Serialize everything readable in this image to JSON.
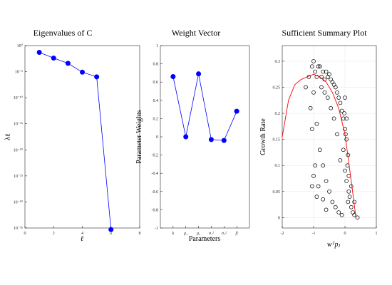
{
  "chart_data": [
    {
      "type": "line",
      "title": "Eigenvalues of C",
      "xlabel": "ℓ",
      "ylabel": "λℓ",
      "yscale": "log",
      "xlim": [
        0,
        8
      ],
      "ylim_exponent": [
        -35,
        0
      ],
      "x_tick_labels": [
        "0",
        "2",
        "4",
        "6",
        "8"
      ],
      "y_tick_labels": [
        "10⁰",
        "10⁻⁵",
        "10⁻¹⁰",
        "10⁻¹⁵",
        "10⁻²⁰",
        "10⁻²⁵",
        "10⁻³⁰",
        "10⁻³⁵"
      ],
      "x": [
        1,
        2,
        3,
        4,
        5,
        6
      ],
      "y_log10": [
        -1.3,
        -2.4,
        -3.4,
        -5.1,
        -6.0,
        -35.3
      ],
      "color": "#0000ff"
    },
    {
      "type": "line",
      "title": "Weight Vector",
      "xlabel": "Parameters",
      "ylabel": "Parameter Weights",
      "ylim": [
        -1,
        1
      ],
      "categories": [
        "k",
        "μ₁",
        "μ₂",
        "σ₁²",
        "σ₂²",
        "β"
      ],
      "y_tick_labels": [
        "1",
        "0.8",
        "0.6",
        "0.4",
        "0.2",
        "0",
        "-0.2",
        "-0.4",
        "-0.6",
        "-0.8",
        "-1"
      ],
      "values": [
        0.66,
        0.0,
        0.69,
        -0.03,
        -0.04,
        0.28
      ],
      "color": "#0000ff"
    },
    {
      "type": "scatter",
      "title": "Sufficient Summary Plot",
      "xlabel": "wᵀpⱼ",
      "ylabel": "Growth Rate",
      "xlim": [
        -2,
        1
      ],
      "ylim": [
        -0.02,
        0.33
      ],
      "grid": true,
      "x_tick_labels": [
        "-2",
        "-1",
        "0",
        "1"
      ],
      "y_tick_labels": [
        "0.3",
        "0.25",
        "0.2",
        "0.15",
        "0.1",
        "0.05",
        "0"
      ],
      "points": [
        [
          -1.25,
          0.25
        ],
        [
          -1.05,
          0.29
        ],
        [
          -1.0,
          0.3
        ],
        [
          -0.95,
          0.28
        ],
        [
          -0.9,
          0.27
        ],
        [
          -0.85,
          0.29
        ],
        [
          -0.8,
          0.29
        ],
        [
          -0.75,
          0.27
        ],
        [
          -0.7,
          0.28
        ],
        [
          -0.65,
          0.265
        ],
        [
          -0.6,
          0.28
        ],
        [
          -0.55,
          0.27
        ],
        [
          -0.5,
          0.275
        ],
        [
          -0.45,
          0.265
        ],
        [
          -0.4,
          0.26
        ],
        [
          -0.35,
          0.255
        ],
        [
          -0.3,
          0.25
        ],
        [
          -0.25,
          0.24
        ],
        [
          -0.2,
          0.23
        ],
        [
          -0.15,
          0.22
        ],
        [
          -0.1,
          0.205
        ],
        [
          -0.05,
          0.19
        ],
        [
          0.0,
          0.17
        ],
        [
          0.05,
          0.15
        ],
        [
          0.1,
          0.12
        ],
        [
          0.12,
          0.08
        ],
        [
          0.15,
          0.04
        ],
        [
          0.2,
          0.02
        ],
        [
          0.3,
          0.005
        ],
        [
          0.4,
          0.0
        ],
        [
          -1.0,
          0.24
        ],
        [
          -0.9,
          0.18
        ],
        [
          -0.8,
          0.13
        ],
        [
          -0.7,
          0.1
        ],
        [
          -0.6,
          0.07
        ],
        [
          -0.5,
          0.05
        ],
        [
          -0.4,
          0.03
        ],
        [
          -0.3,
          0.02
        ],
        [
          -0.2,
          0.01
        ],
        [
          -0.1,
          0.005
        ],
        [
          0.0,
          0.09
        ],
        [
          -0.05,
          0.13
        ],
        [
          0.05,
          0.07
        ],
        [
          -0.15,
          0.11
        ],
        [
          -0.25,
          0.16
        ],
        [
          -0.35,
          0.19
        ],
        [
          -0.45,
          0.21
        ],
        [
          -0.55,
          0.23
        ],
        [
          -0.65,
          0.24
        ],
        [
          -0.75,
          0.25
        ],
        [
          -1.15,
          0.27
        ],
        [
          -1.1,
          0.21
        ],
        [
          -1.05,
          0.17
        ],
        [
          -1.0,
          0.08
        ],
        [
          -1.05,
          0.06
        ],
        [
          -0.95,
          0.1
        ],
        [
          -0.9,
          0.04
        ],
        [
          -0.85,
          0.06
        ],
        [
          -0.7,
          0.035
        ],
        [
          -0.6,
          0.015
        ],
        [
          0.1,
          0.03
        ],
        [
          0.08,
          0.1
        ],
        [
          0.02,
          0.16
        ],
        [
          -0.02,
          0.2
        ],
        [
          0.0,
          0.23
        ],
        [
          0.05,
          0.19
        ],
        [
          0.12,
          0.05
        ],
        [
          0.2,
          0.06
        ],
        [
          0.25,
          0.01
        ],
        [
          0.3,
          0.03
        ]
      ],
      "fit_line": {
        "x": [
          -2.0,
          -1.8,
          -1.6,
          -1.4,
          -1.2,
          -1.0,
          -0.8,
          -0.6,
          -0.4,
          -0.2,
          0.0,
          0.2,
          0.35
        ],
        "y": [
          0.155,
          0.225,
          0.255,
          0.265,
          0.27,
          0.275,
          0.27,
          0.26,
          0.24,
          0.21,
          0.16,
          0.07,
          0.0
        ],
        "color": "#ff0000"
      }
    }
  ]
}
